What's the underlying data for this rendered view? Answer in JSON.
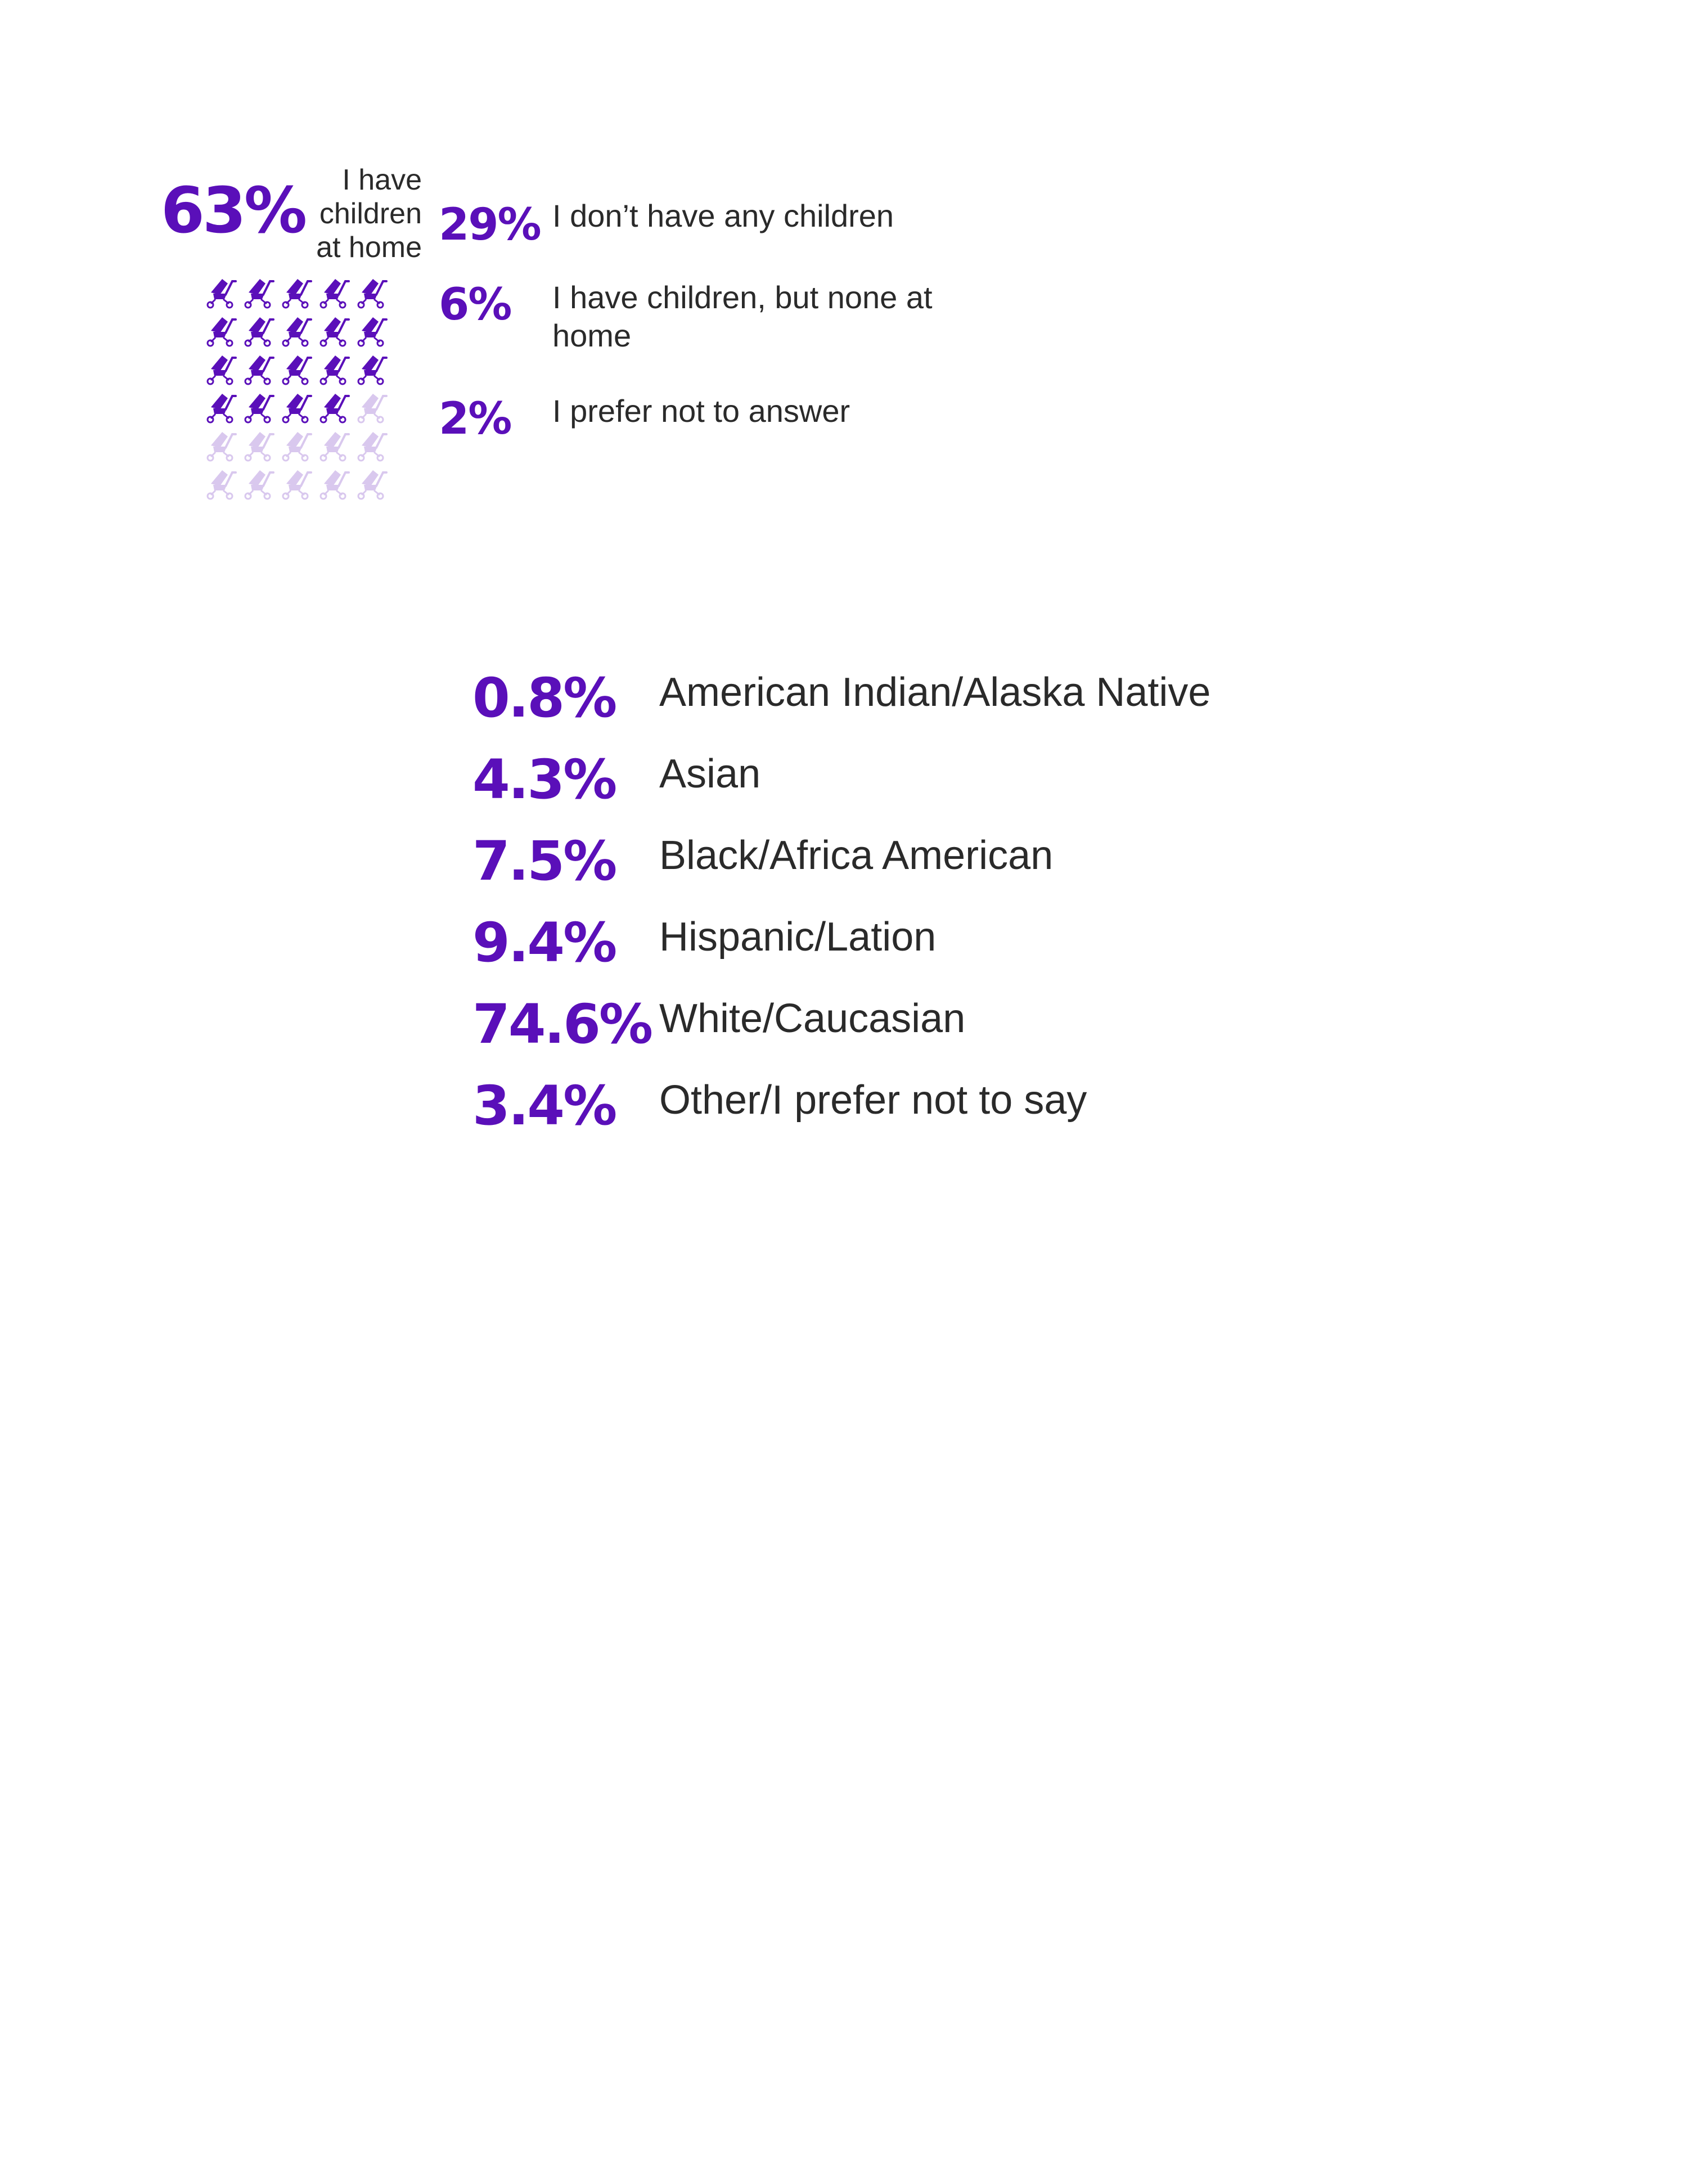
{
  "chart_data": [
    {
      "type": "pictogram",
      "icon": "stroller-icon",
      "icon_count": 30,
      "filled_count": 19,
      "colors": {
        "filled": "#5a0fb9",
        "empty": "#d9c8ee"
      },
      "items": [
        {
          "value": "63%",
          "label": "I have children at home",
          "label_lines": [
            "I have",
            "children",
            "at home"
          ]
        },
        {
          "value": "29%",
          "label": "I don’t have any children"
        },
        {
          "value": "6%",
          "label": "I have children, but none at home",
          "label_lines": [
            "I have children, but none at",
            "home"
          ]
        },
        {
          "value": "2%",
          "label": "I prefer not to answer"
        }
      ]
    },
    {
      "type": "table",
      "rows": [
        {
          "value": "0.8%",
          "label": "American Indian/Alaska Native"
        },
        {
          "value": "4.3%",
          "label": "Asian"
        },
        {
          "value": "7.5%",
          "label": "Black/Africa American"
        },
        {
          "value": "9.4%",
          "label": "Hispanic/Lation"
        },
        {
          "value": "74.6%",
          "label": "White/Caucasian"
        },
        {
          "value": "3.4%",
          "label": "Other/I prefer not to say"
        }
      ]
    }
  ],
  "colors": {
    "accent": "#5a0fb9",
    "text": "#2a2a2a"
  }
}
